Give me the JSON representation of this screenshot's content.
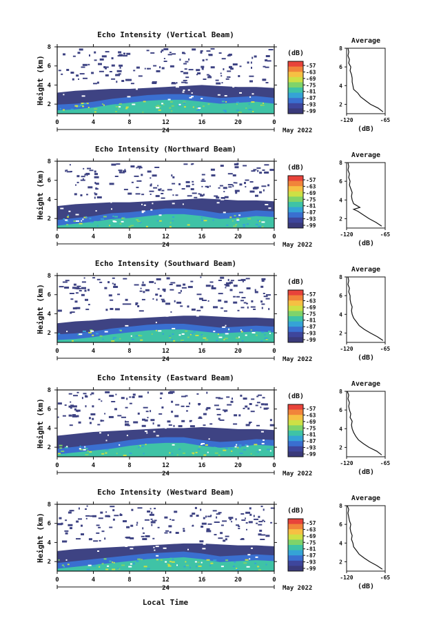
{
  "xlabel": "Local Time",
  "colorbar": {
    "unit": "(dB)",
    "ticks": [
      "-57",
      "-63",
      "-69",
      "-75",
      "-81",
      "-87",
      "-93",
      "-99"
    ],
    "colors": [
      "#e8433a",
      "#f1843a",
      "#f6c043",
      "#cde045",
      "#7fd36a",
      "#3fc3a6",
      "#35a3d6",
      "#3a6fd0",
      "#3e469c",
      "#3a3a7a"
    ]
  },
  "chart_data": [
    {
      "type": "heatmap",
      "title": "Echo Intensity (Vertical Beam)",
      "ylabel": "Height (km)",
      "xlim": [
        0,
        24
      ],
      "ylim": [
        1,
        8
      ],
      "x_ticks": [
        "0",
        "4",
        "8",
        "12",
        "16",
        "20",
        "0"
      ],
      "y_ticks": [
        "2",
        "4",
        "6",
        "8"
      ],
      "date_center": "24",
      "date_label": "May 2022",
      "layers": {
        "boundary_km": [
          3.2,
          3.4,
          3.5,
          3.6,
          3.6,
          3.7,
          3.8,
          3.9,
          4.0,
          3.9,
          3.8,
          3.8,
          3.7
        ],
        "bright_top_km": [
          1.7,
          1.8,
          2.0,
          2.3,
          2.5,
          2.7,
          2.8,
          2.8,
          2.6,
          2.4,
          2.5,
          2.6,
          2.4
        ]
      },
      "profile": {
        "title": "Average",
        "xlabel": "(dB)",
        "xlim": [
          -120,
          -65
        ],
        "x_ticks": [
          "-120",
          "-65"
        ],
        "y_ticks": [
          "2",
          "4",
          "6",
          "8"
        ],
        "height_km": [
          1.2,
          1.6,
          2.0,
          2.4,
          2.8,
          3.2,
          3.6,
          4.0,
          4.4,
          4.8,
          5.2,
          5.6,
          6.0,
          6.4,
          6.8,
          7.2,
          7.6,
          8.0
        ],
        "db": [
          -68,
          -75,
          -86,
          -93,
          -100,
          -104,
          -110,
          -111,
          -112,
          -112,
          -113,
          -115,
          -114,
          -117,
          -116,
          -118,
          -117,
          -118
        ]
      }
    },
    {
      "type": "heatmap",
      "title": "Echo Intensity (Northward Beam)",
      "ylabel": "Height (km)",
      "xlim": [
        0,
        24
      ],
      "ylim": [
        1,
        8
      ],
      "x_ticks": [
        "0",
        "4",
        "8",
        "12",
        "16",
        "20",
        "0"
      ],
      "y_ticks": [
        "2",
        "4",
        "6",
        "8"
      ],
      "date_center": "24",
      "date_label": "May 2022",
      "layers": {
        "boundary_km": [
          3.3,
          3.5,
          3.6,
          3.7,
          3.7,
          3.8,
          3.9,
          4.0,
          4.1,
          4.0,
          3.9,
          3.9,
          3.8
        ],
        "bright_top_km": [
          1.6,
          1.8,
          2.0,
          2.3,
          2.4,
          2.6,
          2.8,
          2.8,
          2.6,
          2.3,
          2.4,
          2.6,
          2.5
        ]
      },
      "profile": {
        "title": "Average",
        "xlabel": "(dB)",
        "xlim": [
          -120,
          -65
        ],
        "x_ticks": [
          "-120",
          "-65"
        ],
        "y_ticks": [
          "2",
          "4",
          "6",
          "8"
        ],
        "height_km": [
          1.2,
          1.6,
          2.0,
          2.4,
          2.8,
          3.0,
          3.2,
          3.6,
          4.0,
          4.4,
          4.8,
          5.2,
          5.6,
          6.0,
          6.4,
          6.8,
          7.2,
          7.6,
          8.0
        ],
        "db": [
          -70,
          -78,
          -88,
          -96,
          -104,
          -110,
          -101,
          -110,
          -112,
          -113,
          -112,
          -114,
          -116,
          -115,
          -117,
          -116,
          -118,
          -117,
          -118
        ]
      }
    },
    {
      "type": "heatmap",
      "title": "Echo Intensity (Southward Beam)",
      "ylabel": "Height (km)",
      "xlim": [
        0,
        24
      ],
      "ylim": [
        1,
        8
      ],
      "x_ticks": [
        "0",
        "4",
        "8",
        "12",
        "16",
        "20",
        "0"
      ],
      "y_ticks": [
        "2",
        "4",
        "6",
        "8"
      ],
      "date_center": "24",
      "date_label": "May 2022",
      "layers": {
        "boundary_km": [
          3.0,
          3.2,
          3.3,
          3.5,
          3.5,
          3.6,
          3.7,
          3.8,
          3.8,
          3.7,
          3.6,
          3.6,
          3.5
        ],
        "bright_top_km": [
          1.6,
          1.7,
          1.9,
          2.2,
          2.4,
          2.6,
          2.7,
          2.7,
          2.5,
          2.3,
          2.4,
          2.5,
          2.4
        ]
      },
      "profile": {
        "title": "Average",
        "xlabel": "(dB)",
        "xlim": [
          -120,
          -65
        ],
        "x_ticks": [
          "-120",
          "-65"
        ],
        "y_ticks": [
          "2",
          "4",
          "6",
          "8"
        ],
        "height_km": [
          1.2,
          1.6,
          2.0,
          2.4,
          2.8,
          3.2,
          3.6,
          4.0,
          4.4,
          4.8,
          5.2,
          5.6,
          6.0,
          6.4,
          6.8,
          7.2,
          7.6,
          8.0
        ],
        "db": [
          -68,
          -76,
          -86,
          -95,
          -102,
          -106,
          -110,
          -112,
          -113,
          -112,
          -114,
          -115,
          -115,
          -117,
          -116,
          -118,
          -117,
          -118
        ]
      }
    },
    {
      "type": "heatmap",
      "title": "Echo Intensity (Eastward Beam)",
      "ylabel": "Height (km)",
      "xlim": [
        0,
        24
      ],
      "ylim": [
        1,
        8
      ],
      "x_ticks": [
        "0",
        "4",
        "8",
        "12",
        "16",
        "20",
        "0"
      ],
      "y_ticks": [
        "2",
        "4",
        "6",
        "8"
      ],
      "date_center": "24",
      "date_label": "May 2022",
      "layers": {
        "boundary_km": [
          3.2,
          3.4,
          3.6,
          3.7,
          3.8,
          3.9,
          4.0,
          4.0,
          4.1,
          4.0,
          3.9,
          3.9,
          3.8
        ],
        "bright_top_km": [
          1.6,
          1.8,
          2.0,
          2.2,
          2.5,
          2.7,
          2.8,
          2.8,
          2.5,
          2.3,
          2.4,
          2.6,
          2.5
        ]
      },
      "profile": {
        "title": "Average",
        "xlabel": "(dB)",
        "xlim": [
          -120,
          -65
        ],
        "x_ticks": [
          "-120",
          "-65"
        ],
        "y_ticks": [
          "2",
          "4",
          "6",
          "8"
        ],
        "height_km": [
          1.2,
          1.6,
          2.0,
          2.4,
          2.8,
          3.2,
          3.6,
          4.0,
          4.4,
          4.8,
          5.2,
          5.6,
          6.0,
          6.4,
          6.8,
          7.2,
          7.6,
          8.0
        ],
        "db": [
          -70,
          -77,
          -88,
          -96,
          -103,
          -107,
          -110,
          -112,
          -113,
          -112,
          -115,
          -114,
          -116,
          -117,
          -116,
          -118,
          -117,
          -119
        ]
      }
    },
    {
      "type": "heatmap",
      "title": "Echo Intensity (Westward Beam)",
      "ylabel": "Height (km)",
      "xlim": [
        0,
        24
      ],
      "ylim": [
        1,
        8
      ],
      "x_ticks": [
        "0",
        "4",
        "8",
        "12",
        "16",
        "20",
        "0"
      ],
      "y_ticks": [
        "2",
        "4",
        "6",
        "8"
      ],
      "date_center": "24",
      "date_label": "May 2022",
      "layers": {
        "boundary_km": [
          3.1,
          3.3,
          3.4,
          3.5,
          3.6,
          3.7,
          3.8,
          3.9,
          3.9,
          3.8,
          3.7,
          3.7,
          3.6
        ],
        "bright_top_km": [
          1.6,
          1.8,
          2.0,
          2.2,
          2.4,
          2.6,
          2.7,
          2.8,
          2.6,
          2.3,
          2.4,
          2.5,
          2.4
        ]
      },
      "profile": {
        "title": "Average",
        "xlabel": "(dB)",
        "xlim": [
          -120,
          -65
        ],
        "x_ticks": [
          "-120",
          "-65"
        ],
        "y_ticks": [
          "2",
          "4",
          "6",
          "8"
        ],
        "height_km": [
          1.2,
          1.6,
          2.0,
          2.4,
          2.8,
          3.2,
          3.6,
          4.0,
          4.4,
          4.8,
          5.2,
          5.6,
          6.0,
          6.4,
          6.8,
          7.2,
          7.6,
          8.0
        ],
        "db": [
          -69,
          -77,
          -87,
          -95,
          -102,
          -106,
          -110,
          -111,
          -113,
          -112,
          -114,
          -115,
          -114,
          -116,
          -117,
          -118,
          -117,
          -119
        ]
      }
    }
  ]
}
